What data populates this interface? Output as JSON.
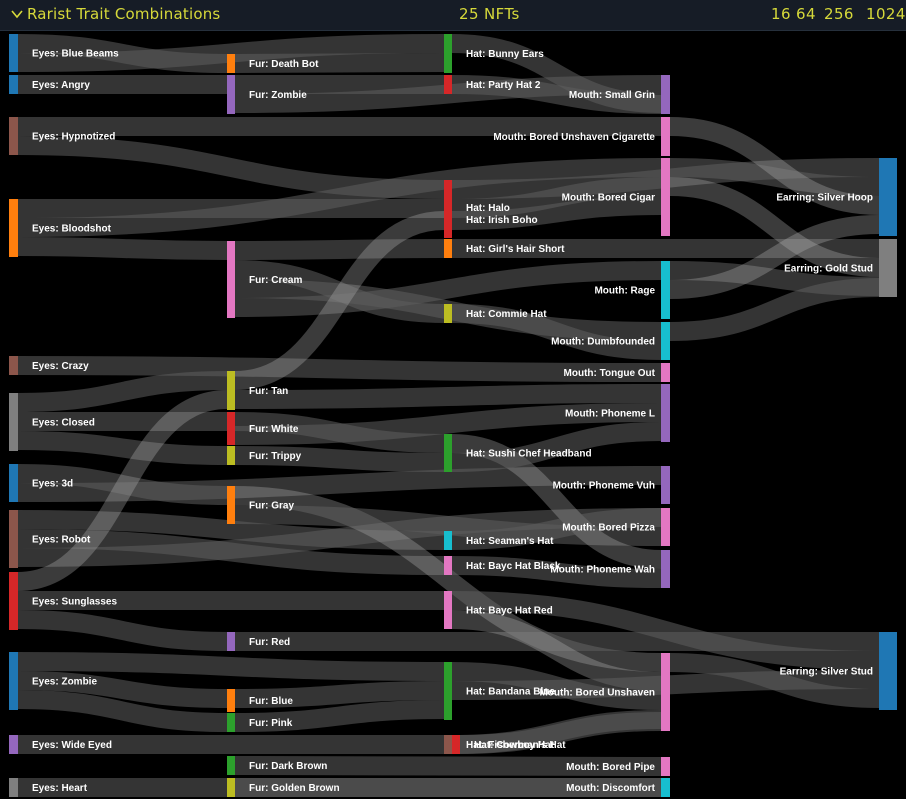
{
  "header": {
    "title": "Rarist Trait Combinations",
    "count": "25 NFTs",
    "zoom_options": [
      "16",
      "64",
      "256",
      "1024"
    ]
  },
  "chart_data": {
    "type": "sankey",
    "title": "Rarist Trait Combinations",
    "unit": "NFTs",
    "columns": [
      "Eyes",
      "Fur",
      "Hat",
      "Mouth",
      "Earring"
    ],
    "nodes": [
      {
        "id": "Eyes: Blue Beams",
        "column": 0,
        "value": 1,
        "color": "#1f77b4"
      },
      {
        "id": "Eyes: Angry",
        "column": 0,
        "value": 0.5,
        "color": "#1f77b4"
      },
      {
        "id": "Eyes: Hypnotized",
        "column": 0,
        "value": 1,
        "color": "#8c564b"
      },
      {
        "id": "Eyes: Bloodshot",
        "column": 0,
        "value": 1.5,
        "color": "#ff7f0e"
      },
      {
        "id": "Eyes: Crazy",
        "column": 0,
        "value": 0.5,
        "color": "#8c564b"
      },
      {
        "id": "Eyes: Closed",
        "column": 0,
        "value": 1.5,
        "color": "#7f7f7f"
      },
      {
        "id": "Eyes: 3d",
        "column": 0,
        "value": 1,
        "color": "#1f77b4"
      },
      {
        "id": "Eyes: Robot",
        "column": 0,
        "value": 1.5,
        "color": "#8c564b"
      },
      {
        "id": "Eyes: Sunglasses",
        "column": 0,
        "value": 1.5,
        "color": "#d62728"
      },
      {
        "id": "Eyes: Zombie",
        "column": 0,
        "value": 1.5,
        "color": "#1f77b4"
      },
      {
        "id": "Eyes: Wide Eyed",
        "column": 0,
        "value": 0.5,
        "color": "#9467bd"
      },
      {
        "id": "Eyes: Heart",
        "column": 0,
        "value": 0.5,
        "color": "#7f7f7f"
      },
      {
        "id": "Fur: Death Bot",
        "column": 1,
        "value": 0.5,
        "color": "#ff7f0e"
      },
      {
        "id": "Fur: Zombie",
        "column": 1,
        "value": 1,
        "color": "#9467bd"
      },
      {
        "id": "Fur: Cream",
        "column": 1,
        "value": 2,
        "color": "#e377c2"
      },
      {
        "id": "Fur: Tan",
        "column": 1,
        "value": 1,
        "color": "#bcbd22"
      },
      {
        "id": "Fur: White",
        "column": 1,
        "value": 1,
        "color": "#d62728"
      },
      {
        "id": "Fur: Trippy",
        "column": 1,
        "value": 0.5,
        "color": "#bcbd22"
      },
      {
        "id": "Fur: Gray",
        "column": 1,
        "value": 1,
        "color": "#ff7f0e"
      },
      {
        "id": "Fur: Red",
        "column": 1,
        "value": 0.5,
        "color": "#9467bd"
      },
      {
        "id": "Fur: Blue",
        "column": 1,
        "value": 0.5,
        "color": "#ff7f0e"
      },
      {
        "id": "Fur: Pink",
        "column": 1,
        "value": 0.5,
        "color": "#2ca02c"
      },
      {
        "id": "Fur: Dark Brown",
        "column": 1,
        "value": 0.5,
        "color": "#2ca02c"
      },
      {
        "id": "Fur: Golden Brown",
        "column": 1,
        "value": 0.5,
        "color": "#bcbd22"
      },
      {
        "id": "Hat: Bunny Ears",
        "column": 2,
        "value": 1,
        "color": "#2ca02c"
      },
      {
        "id": "Hat: Party Hat 2",
        "column": 2,
        "value": 0.5,
        "color": "#d62728"
      },
      {
        "id": "Hat: Halo",
        "column": 2,
        "value": 1,
        "color": "#d62728"
      },
      {
        "id": "Hat: Irish Boho",
        "column": 2,
        "value": 0.5,
        "color": "#d62728"
      },
      {
        "id": "Hat: Girl's Hair Short",
        "column": 2,
        "value": 0.5,
        "color": "#ff7f0e"
      },
      {
        "id": "Hat: Commie Hat",
        "column": 2,
        "value": 0.5,
        "color": "#bcbd22"
      },
      {
        "id": "Hat: Sushi Chef Headband",
        "column": 2,
        "value": 1,
        "color": "#2ca02c"
      },
      {
        "id": "Hat: Seaman's Hat",
        "column": 2,
        "value": 0.5,
        "color": "#17becf"
      },
      {
        "id": "Hat: Bayc Hat Black",
        "column": 2,
        "value": 0.5,
        "color": "#e377c2"
      },
      {
        "id": "Hat: Bayc Hat Red",
        "column": 2,
        "value": 1,
        "color": "#e377c2"
      },
      {
        "id": "Hat: Bandana Blue",
        "column": 2,
        "value": 1.5,
        "color": "#2ca02c"
      },
      {
        "id": "Hat: Fisherman's Hat",
        "column": 2,
        "value": 0.5,
        "color": "#8c564b"
      },
      {
        "id": "Hat: Cowboy Hat",
        "column": 2,
        "value": 0.5,
        "color": "#d62728"
      },
      {
        "id": "Mouth: Small Grin",
        "column": 3,
        "value": 1,
        "color": "#9467bd"
      },
      {
        "id": "Mouth: Bored Unshaven Cigarette",
        "column": 3,
        "value": 1,
        "color": "#e377c2"
      },
      {
        "id": "Mouth: Bored Cigar",
        "column": 3,
        "value": 2,
        "color": "#e377c2"
      },
      {
        "id": "Mouth: Rage",
        "column": 3,
        "value": 1.5,
        "color": "#17becf"
      },
      {
        "id": "Mouth: Dumbfounded",
        "column": 3,
        "value": 1,
        "color": "#17becf"
      },
      {
        "id": "Mouth: Tongue Out",
        "column": 3,
        "value": 0.5,
        "color": "#e377c2"
      },
      {
        "id": "Mouth: Phoneme L",
        "column": 3,
        "value": 1.5,
        "color": "#9467bd"
      },
      {
        "id": "Mouth: Phoneme Vuh",
        "column": 3,
        "value": 1,
        "color": "#9467bd"
      },
      {
        "id": "Mouth: Bored Pizza",
        "column": 3,
        "value": 1,
        "color": "#e377c2"
      },
      {
        "id": "Mouth: Phoneme Wah",
        "column": 3,
        "value": 1,
        "color": "#9467bd"
      },
      {
        "id": "Mouth: Bored Unshaven",
        "column": 3,
        "value": 2,
        "color": "#e377c2"
      },
      {
        "id": "Mouth: Bored Pipe",
        "column": 3,
        "value": 0.5,
        "color": "#e377c2"
      },
      {
        "id": "Mouth: Discomfort",
        "column": 3,
        "value": 0.5,
        "color": "#17becf"
      },
      {
        "id": "Earring: Silver Hoop",
        "column": 4,
        "value": 2,
        "color": "#1f77b4"
      },
      {
        "id": "Earring: Gold Stud",
        "column": 4,
        "value": 1.5,
        "color": "#7f7f7f"
      },
      {
        "id": "Earring: Silver Stud",
        "column": 4,
        "value": 2,
        "color": "#1f77b4"
      }
    ],
    "links": [
      {
        "source": "Eyes: Blue Beams",
        "target": "Fur: Death Bot",
        "value": 0.5
      },
      {
        "source": "Eyes: Blue Beams",
        "target": "Hat: Bunny Ears",
        "value": 0.5
      },
      {
        "source": "Eyes: Angry",
        "target": "Fur: Zombie",
        "value": 0.5
      },
      {
        "source": "Eyes: Hypnotized",
        "target": "Mouth: Bored Unshaven Cigarette",
        "value": 0.5
      },
      {
        "source": "Eyes: Hypnotized",
        "target": "Hat: Halo",
        "value": 0.5
      },
      {
        "source": "Eyes: Bloodshot",
        "target": "Hat: Halo",
        "value": 0.5
      },
      {
        "source": "Eyes: Bloodshot",
        "target": "Mouth: Bored Cigar",
        "value": 0.5
      },
      {
        "source": "Eyes: Bloodshot",
        "target": "Fur: Cream",
        "value": 0.5
      },
      {
        "source": "Eyes: Crazy",
        "target": "Mouth: Tongue Out",
        "value": 0.5
      },
      {
        "source": "Eyes: Closed",
        "target": "Fur: Tan",
        "value": 0.5
      },
      {
        "source": "Eyes: Closed",
        "target": "Fur: White",
        "value": 0.5
      },
      {
        "source": "Eyes: Closed",
        "target": "Fur: Trippy",
        "value": 0.5
      },
      {
        "source": "Eyes: 3d",
        "target": "Fur: Gray",
        "value": 0.5
      },
      {
        "source": "Eyes: 3d",
        "target": "Mouth: Phoneme Vuh",
        "value": 0.5
      },
      {
        "source": "Eyes: Robot",
        "target": "Hat: Seaman's Hat",
        "value": 0.5
      },
      {
        "source": "Eyes: Robot",
        "target": "Hat: Bayc Hat Black",
        "value": 0.5
      },
      {
        "source": "Eyes: Robot",
        "target": "Mouth: Bored Pizza",
        "value": 0.5
      },
      {
        "source": "Eyes: Sunglasses",
        "target": "Fur: Tan",
        "value": 0.5
      },
      {
        "source": "Eyes: Sunglasses",
        "target": "Hat: Bayc Hat Red",
        "value": 0.5
      },
      {
        "source": "Eyes: Sunglasses",
        "target": "Fur: Red",
        "value": 0.5
      },
      {
        "source": "Eyes: Zombie",
        "target": "Hat: Bandana Blue",
        "value": 0.5
      },
      {
        "source": "Eyes: Zombie",
        "target": "Fur: Blue",
        "value": 0.5
      },
      {
        "source": "Eyes: Zombie",
        "target": "Fur: Pink",
        "value": 0.5
      },
      {
        "source": "Eyes: Wide Eyed",
        "target": "Hat: Fisherman's Hat",
        "value": 0.5
      },
      {
        "source": "Eyes: Heart",
        "target": "Mouth: Discomfort",
        "value": 0.5
      },
      {
        "source": "Fur: Death Bot",
        "target": "Hat: Bunny Ears",
        "value": 0.5
      },
      {
        "source": "Fur: Zombie",
        "target": "Hat: Party Hat 2",
        "value": 0.5
      },
      {
        "source": "Fur: Zombie",
        "target": "Mouth: Small Grin",
        "value": 0.5
      },
      {
        "source": "Fur: Cream",
        "target": "Hat: Girl's Hair Short",
        "value": 0.5
      },
      {
        "source": "Fur: Cream",
        "target": "Hat: Commie Hat",
        "value": 0.5
      },
      {
        "source": "Fur: Cream",
        "target": "Mouth: Dumbfounded",
        "value": 0.5
      },
      {
        "source": "Fur: Cream",
        "target": "Mouth: Rage",
        "value": 0.5
      },
      {
        "source": "Fur: Tan",
        "target": "Hat: Irish Boho",
        "value": 0.5
      },
      {
        "source": "Fur: Tan",
        "target": "Mouth: Phoneme L",
        "value": 0.5
      },
      {
        "source": "Fur: White",
        "target": "Hat: Sushi Chef Headband",
        "value": 0.5
      },
      {
        "source": "Fur: White",
        "target": "Mouth: Phoneme L",
        "value": 0.5
      },
      {
        "source": "Fur: Trippy",
        "target": "Hat: Sushi Chef Headband",
        "value": 0.5
      },
      {
        "source": "Fur: Gray",
        "target": "Mouth: Bored Unshaven",
        "value": 0.5
      },
      {
        "source": "Fur: Gray",
        "target": "Mouth: Bored Pizza",
        "value": 0.5
      },
      {
        "source": "Fur: Red",
        "target": "Earring: Silver Stud",
        "value": 0.5
      },
      {
        "source": "Fur: Blue",
        "target": "Hat: Bandana Blue",
        "value": 0.5
      },
      {
        "source": "Fur: Pink",
        "target": "Hat: Bandana Blue",
        "value": 0.5
      },
      {
        "source": "Fur: Dark Brown",
        "target": "Mouth: Bored Pipe",
        "value": 0.5
      },
      {
        "source": "Fur: Golden Brown",
        "target": "Mouth: Discomfort",
        "value": 0.5
      },
      {
        "source": "Hat: Bunny Ears",
        "target": "Mouth: Small Grin",
        "value": 0.5
      },
      {
        "source": "Hat: Party Hat 2",
        "target": "Mouth: Small Grin",
        "value": 0.5
      },
      {
        "source": "Hat: Halo",
        "target": "Earring: Silver Hoop",
        "value": 0.5
      },
      {
        "source": "Hat: Halo",
        "target": "Mouth: Bored Cigar",
        "value": 0.5
      },
      {
        "source": "Hat: Irish Boho",
        "target": "Mouth: Bored Cigar",
        "value": 0.5
      },
      {
        "source": "Hat: Girl's Hair Short",
        "target": "Earring: Gold Stud",
        "value": 0.5
      },
      {
        "source": "Hat: Commie Hat",
        "target": "Mouth: Dumbfounded",
        "value": 0.5
      },
      {
        "source": "Hat: Sushi Chef Headband",
        "target": "Mouth: Phoneme Wah",
        "value": 0.5
      },
      {
        "source": "Hat: Sushi Chef Headband",
        "target": "Mouth: Phoneme L",
        "value": 0.5
      },
      {
        "source": "Hat: Seaman's Hat",
        "target": "Mouth: Bored Pizza",
        "value": 0.5
      },
      {
        "source": "Hat: Bayc Hat Black",
        "target": "Mouth: Phoneme Wah",
        "value": 0.5
      },
      {
        "source": "Hat: Bayc Hat Red",
        "target": "Earring: Silver Stud",
        "value": 0.5
      },
      {
        "source": "Hat: Bayc Hat Red",
        "target": "Mouth: Bored Unshaven",
        "value": 0.5
      },
      {
        "source": "Hat: Bandana Blue",
        "target": "Mouth: Bored Unshaven",
        "value": 0.5
      },
      {
        "source": "Hat: Bandana Blue",
        "target": "Earring: Silver Stud",
        "value": 0.5
      },
      {
        "source": "Hat: Fisherman's Hat",
        "target": "Mouth: Bored Unshaven",
        "value": 0.5
      },
      {
        "source": "Hat: Cowboy Hat",
        "target": "Mouth: Bored Unshaven",
        "value": 0.5
      },
      {
        "source": "Mouth: Bored Cigar",
        "target": "Earring: Silver Hoop",
        "value": 0.5
      },
      {
        "source": "Mouth: Bored Cigar",
        "target": "Earring: Gold Stud",
        "value": 0.5
      },
      {
        "source": "Mouth: Bored Unshaven Cigarette",
        "target": "Earring: Silver Hoop",
        "value": 0.5
      },
      {
        "source": "Mouth: Rage",
        "target": "Earring: Gold Stud",
        "value": 0.5
      },
      {
        "source": "Mouth: Rage",
        "target": "Earring: Silver Hoop",
        "value": 0.5
      },
      {
        "source": "Mouth: Dumbfounded",
        "target": "Earring: Gold Stud",
        "value": 0.5
      },
      {
        "source": "Mouth: Bored Unshaven",
        "target": "Earring: Silver Stud",
        "value": 0.5
      }
    ]
  }
}
